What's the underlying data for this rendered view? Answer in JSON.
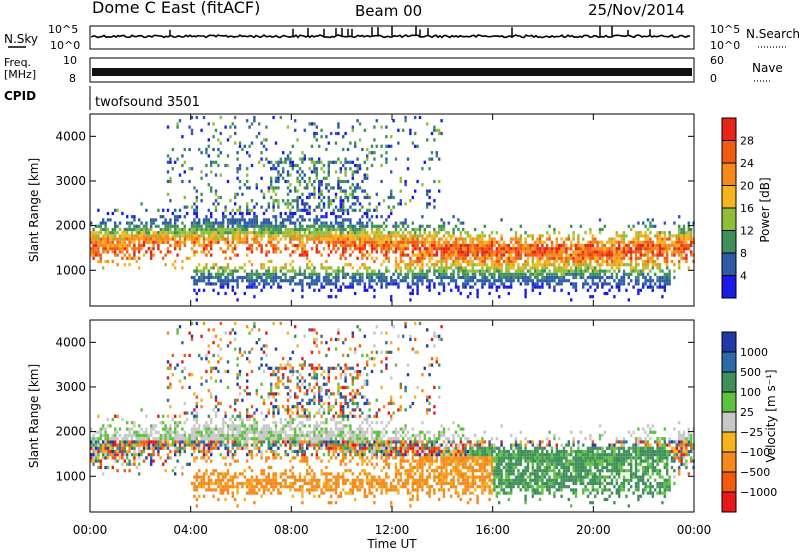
{
  "header": {
    "station": "Dome C East (fitACF)",
    "beam": "Beam 00",
    "date": "25/Nov/2014"
  },
  "panels": {
    "nsky": {
      "label": "N.Sky",
      "ticks_left": [
        "10^5",
        "10^0"
      ],
      "ticks_right": [
        "10^5",
        "10^0"
      ],
      "right_label": "N.Search"
    },
    "freq": {
      "label_line1": "Freq.",
      "label_line2": "[MHz]",
      "ticks_left": [
        "10",
        "8"
      ],
      "ticks_right": [
        "60",
        "0"
      ],
      "right_label": "Nave"
    },
    "cpid": {
      "label": "CPID",
      "value": "twofsound 3501"
    }
  },
  "x_axis": {
    "label": "Time UT",
    "ticks": [
      "00:00",
      "04:00",
      "08:00",
      "12:00",
      "16:00",
      "20:00",
      "00:00"
    ]
  },
  "power_colorbar": {
    "title": "Power [dB]",
    "ticks": [
      "28",
      "24",
      "20",
      "16",
      "12",
      "8",
      "4"
    ],
    "colors": [
      "#e82418",
      "#f25a12",
      "#f58a1a",
      "#f5b31e",
      "#8fbf3a",
      "#3f8f5a",
      "#2e5aa8",
      "#1a1ae8"
    ]
  },
  "velocity_colorbar": {
    "title": "Velocity [m s⁻¹]",
    "ticks": [
      "1000",
      "500",
      "100",
      "25",
      "−25",
      "−100",
      "−500",
      "−1000"
    ],
    "colors": [
      "#1f3aa8",
      "#2e6aa8",
      "#3f8f5a",
      "#5fc23f",
      "#c8c8c8",
      "#f5b31e",
      "#f58a1a",
      "#f25a12",
      "#e81818"
    ]
  },
  "chart_data": [
    {
      "type": "heatmap",
      "title": "",
      "xlabel": "Time UT",
      "ylabel": "Slant Range [km]",
      "x_range_hours": [
        0,
        24
      ],
      "ylim": [
        200,
        4500
      ],
      "y_ticks": [
        "1000",
        "2000",
        "3000",
        "4000"
      ],
      "colorbar": "Power [dB]",
      "note_values": "echo power per time/range cell; strongest (~28 dB) near 1200-1700 km",
      "bands": [
        {
          "t0": 0.0,
          "t1": 4.5,
          "r0": 1300,
          "r1": 1750,
          "level": "Power mid"
        },
        {
          "t0": 4.0,
          "t1": 11.0,
          "r0": 1600,
          "r1": 2300,
          "level": "Power high"
        },
        {
          "t0": 11.0,
          "t1": 24.0,
          "r0": 1300,
          "r1": 1900,
          "level": "Power high"
        }
      ]
    },
    {
      "type": "heatmap",
      "title": "",
      "xlabel": "Time UT",
      "ylabel": "Slant Range [km]",
      "x_range_hours": [
        0,
        24
      ],
      "ylim": [
        200,
        4500
      ],
      "y_ticks": [
        "1000",
        "2000",
        "3000",
        "4000"
      ],
      "colorbar": "Velocity [m s⁻¹]",
      "note_values": "Doppler velocity; mostly negative (orange) below 1500 km, ground scatter (grey) near 2000 km"
    }
  ]
}
